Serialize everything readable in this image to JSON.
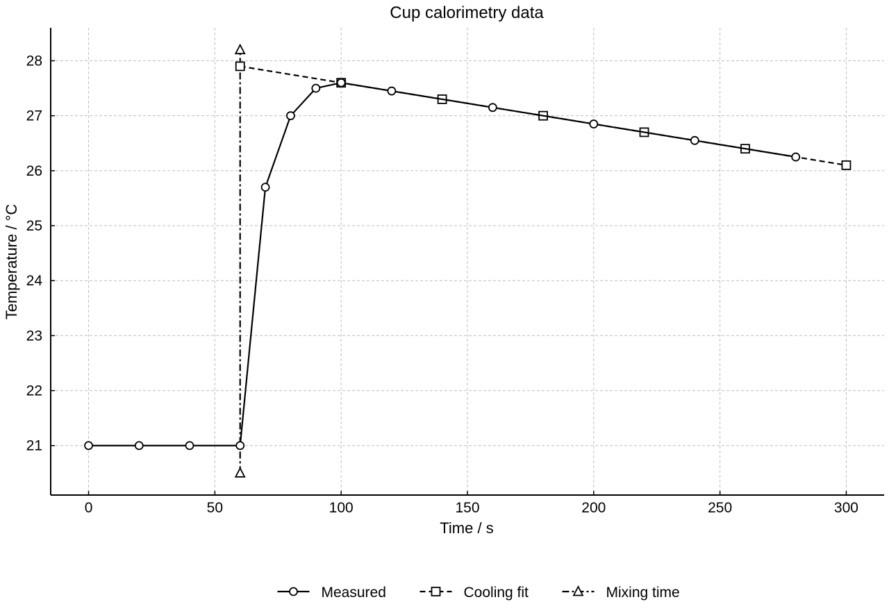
{
  "chart_data": {
    "type": "line",
    "title": "Cup calorimetry data",
    "xlabel": "Time / s",
    "ylabel": "Temperature / °C",
    "xlim": [
      -15,
      315
    ],
    "ylim": [
      20.1,
      28.6
    ],
    "xticks": [
      0,
      50,
      100,
      150,
      200,
      250,
      300
    ],
    "yticks": [
      21,
      22,
      23,
      24,
      25,
      26,
      27,
      28
    ],
    "xtick_labels": [
      "0",
      "50",
      "100",
      "150",
      "200",
      "250",
      "300"
    ],
    "ytick_labels": [
      "21",
      "22",
      "23",
      "24",
      "25",
      "26",
      "27",
      "28"
    ],
    "grid": true,
    "legend_position": "bottom-center",
    "series": [
      {
        "name": "Measured",
        "line_style": "solid",
        "marker": "circle",
        "color": "#000000",
        "x": [
          0,
          20,
          40,
          60,
          70,
          80,
          90,
          100,
          120,
          160,
          200,
          240,
          280
        ],
        "y": [
          21.0,
          21.0,
          21.0,
          21.0,
          25.7,
          27.0,
          27.5,
          27.6,
          27.45,
          27.15,
          26.85,
          26.55,
          26.25
        ]
      },
      {
        "name": "Cooling fit",
        "line_style": "dashed",
        "marker": "square",
        "color": "#000000",
        "x": [
          60,
          100,
          140,
          180,
          220,
          260,
          300
        ],
        "y": [
          27.9,
          27.6,
          27.3,
          27.0,
          26.7,
          26.4,
          26.1
        ]
      },
      {
        "name": "Mixing time",
        "line_style": "dashdot",
        "marker": "triangle",
        "color": "#000000",
        "x": [
          60,
          60
        ],
        "y": [
          20.5,
          28.2
        ]
      }
    ]
  }
}
